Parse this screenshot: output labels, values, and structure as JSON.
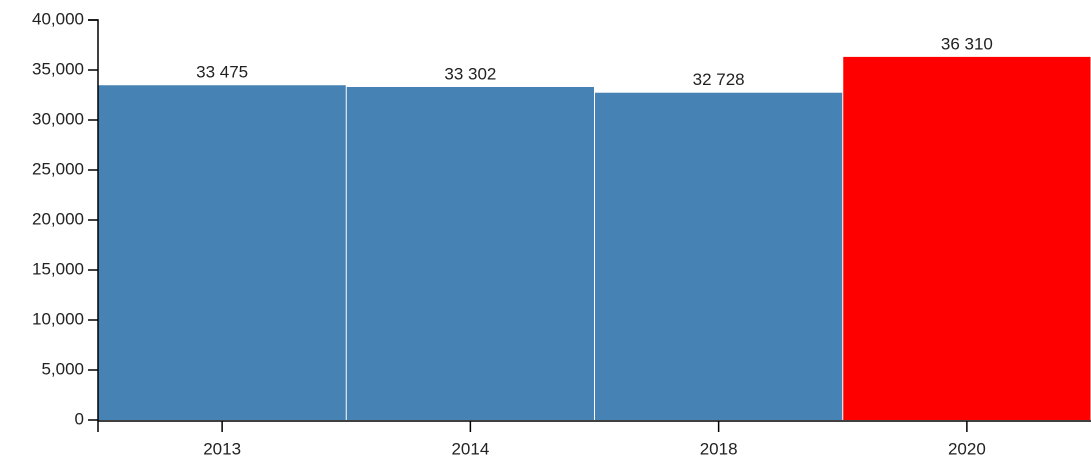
{
  "chart_data": {
    "type": "bar",
    "categories": [
      "2013",
      "2014",
      "2018",
      "2020"
    ],
    "values": [
      33475,
      33302,
      32728,
      36310
    ],
    "value_labels": [
      "33 475",
      "33 302",
      "32 728",
      "36 310"
    ],
    "colors": [
      "#4682b4",
      "#4682b4",
      "#4682b4",
      "#ff0000"
    ],
    "ylim": [
      0,
      40000
    ],
    "yticks": [
      0,
      {
        "value": 5000,
        "label": "5,000"
      },
      {
        "value": 10000,
        "label": "10,000"
      },
      {
        "value": 15000,
        "label": "15,000"
      },
      {
        "value": 20000,
        "label": "20,000"
      },
      {
        "value": 25000,
        "label": "25,000"
      },
      {
        "value": 30000,
        "label": "30,000"
      },
      {
        "value": 35000,
        "label": "35,000"
      },
      {
        "value": 40000,
        "label": "40,000"
      }
    ]
  }
}
